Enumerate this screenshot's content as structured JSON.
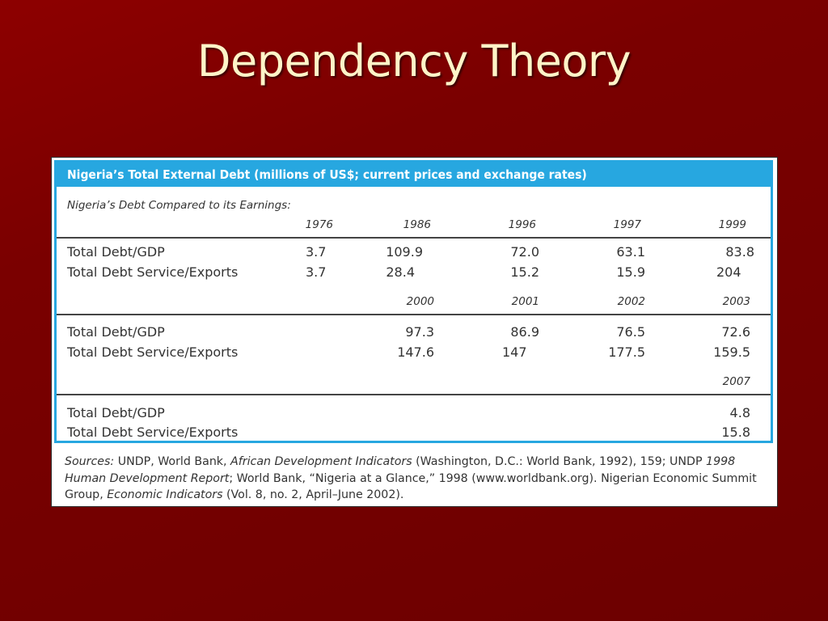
{
  "slide": {
    "title": "Dependency Theory"
  },
  "table": {
    "header": "Nigeria’s Total External Debt (millions of US$; current prices and exchange rates)",
    "subtitle": "Nigeria’s Debt Compared to its Earnings:",
    "label_debt_gdp": "Total Debt/GDP",
    "label_service": "Total Debt Service/Exports",
    "block1": {
      "years": [
        "1976",
        "1986",
        "1996",
        "1997",
        "1999"
      ],
      "debt_gdp": [
        "3.7",
        "109.9",
        "72.0",
        "63.1",
        "83.8"
      ],
      "service_exports": [
        "3.7",
        "28.4",
        "15.2",
        "15.9",
        "204"
      ]
    },
    "block2": {
      "years": [
        "2000",
        "2001",
        "2002",
        "2003"
      ],
      "debt_gdp": [
        "97.3",
        "86.9",
        "76.5",
        "72.6"
      ],
      "service_exports": [
        "147.6",
        "147",
        "177.5",
        "159.5"
      ]
    },
    "block3": {
      "years": [
        "2007"
      ],
      "debt_gdp": [
        "4.8"
      ],
      "service_exports": [
        "15.8"
      ]
    }
  },
  "sources": {
    "prefix": "Sources:",
    "t1": " UNDP, World Bank, ",
    "i1": "African Development Indicators",
    "t2": " (Washington, D.C.: World Bank, 1992), 159; UNDP ",
    "i2": "1998 Human Development Report",
    "t3": "; World Bank, “Nigeria at a Glance,” 1998 (www.worldbank.org). Nigerian Economic Summit Group, ",
    "i3": "Economic Indicators",
    "t4": " (Vol. 8, no. 2, April–June 2002)."
  }
}
